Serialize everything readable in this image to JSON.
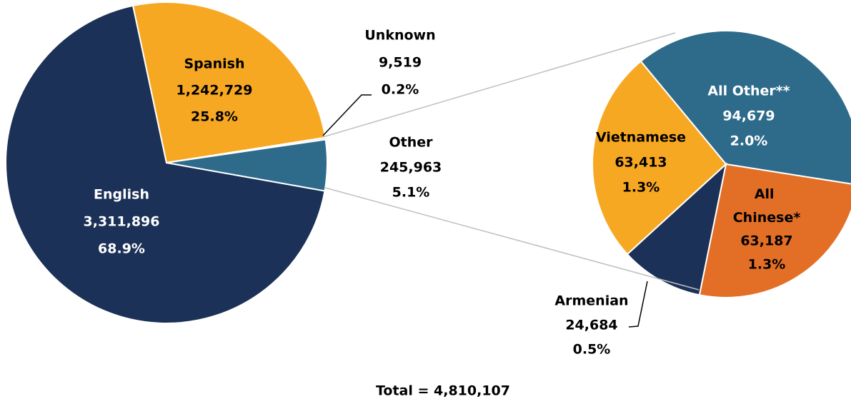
{
  "chart_data": [
    {
      "type": "pie",
      "categories": [
        "English",
        "Spanish",
        "Unknown",
        "Other"
      ],
      "values": [
        3311896,
        1242729,
        9519,
        245963
      ],
      "value_labels": [
        "3,311,896",
        "1,242,729",
        "9,519",
        "245,963"
      ],
      "percent_labels": [
        "68.9%",
        "25.8%",
        "0.2%",
        "5.1%"
      ],
      "colors": [
        "#1b3157",
        "#f7a823",
        "#d9d9d9",
        "#2e6b8b"
      ],
      "annotation": "Total = 4,810,107"
    },
    {
      "type": "pie",
      "categories": [
        "All Other**",
        "All Chinese*",
        "Armenian",
        "Vietnamese"
      ],
      "values": [
        94679,
        63187,
        24684,
        63413
      ],
      "value_labels": [
        "94,679",
        "63,187",
        "24,684",
        "63,413"
      ],
      "percent_labels": [
        "2.0%",
        "1.3%",
        "0.5%",
        "1.3%"
      ],
      "colors": [
        "#2e6b8b",
        "#e36f26",
        "#1b3157",
        "#f7a823"
      ]
    }
  ]
}
